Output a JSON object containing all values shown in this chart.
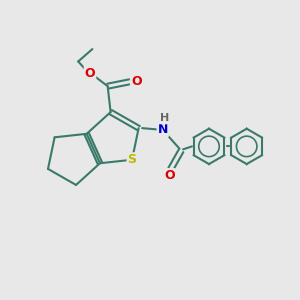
{
  "background_color": "#e8e8e8",
  "bond_color": "#3a7a6a",
  "atom_colors": {
    "O": "#dd0000",
    "N": "#0000cc",
    "S": "#bbbb00",
    "H": "#666666",
    "C": "#3a7a6a"
  },
  "figsize": [
    3.0,
    3.0
  ],
  "dpi": 100
}
